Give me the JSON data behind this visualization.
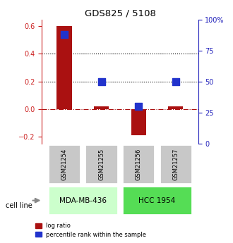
{
  "title": "GDS825 / 5108",
  "samples": [
    "GSM21254",
    "GSM21255",
    "GSM21256",
    "GSM21257"
  ],
  "log_ratio": [
    0.6,
    0.02,
    -0.19,
    0.02
  ],
  "percentile_rank": [
    88,
    50,
    30,
    50
  ],
  "cell_lines": [
    {
      "name": "MDA-MB-436",
      "samples": [
        0,
        1
      ],
      "color": "#ccffcc"
    },
    {
      "name": "HCC 1954",
      "samples": [
        2,
        3
      ],
      "color": "#55dd55"
    }
  ],
  "bar_color": "#aa1111",
  "dot_color": "#2233cc",
  "left_ylim": [
    -0.25,
    0.65
  ],
  "right_ylim": [
    0,
    100
  ],
  "left_yticks": [
    -0.2,
    0.0,
    0.2,
    0.4,
    0.6
  ],
  "right_yticks": [
    0,
    25,
    50,
    75,
    100
  ],
  "right_yticklabels": [
    "0",
    "25",
    "50",
    "75",
    "100%"
  ],
  "hline_y_vals": [
    0.2,
    0.4
  ],
  "dot_size": 55,
  "bar_width": 0.4,
  "sample_box_color": "#c8c8c8",
  "cell_line_label": "cell line",
  "legend_log_ratio": "log ratio",
  "legend_percentile": "percentile rank within the sample",
  "left_axis_color": "#cc2222",
  "right_axis_color": "#2222bb",
  "arrow_color": "#888888"
}
